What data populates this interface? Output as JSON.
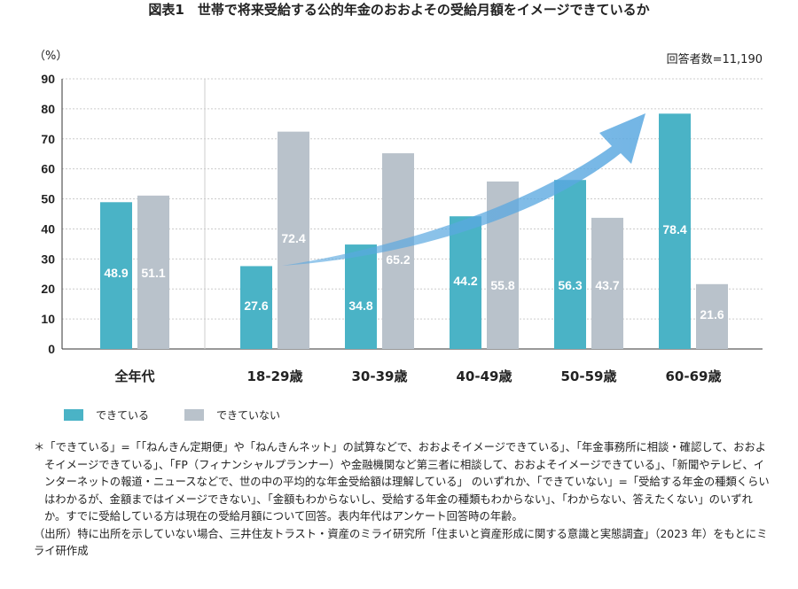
{
  "title": "図表1　世帯で将来受給する公的年金のおおよその受給月額をイメージできているか",
  "unit_label": "（%）",
  "respondents": "回答者数=11,190",
  "colors": {
    "can": "#4ab3c6",
    "cannot": "#b9c2cb",
    "arrow": "#5aa8e0"
  },
  "chart_data": {
    "type": "bar",
    "categories": [
      "全年代",
      "18-29歳",
      "30-39歳",
      "40-49歳",
      "50-59歳",
      "60-69歳"
    ],
    "series": [
      {
        "name": "できている",
        "values": [
          48.9,
          27.6,
          34.8,
          44.2,
          56.3,
          78.4
        ]
      },
      {
        "name": "できていない",
        "values": [
          51.1,
          72.4,
          65.2,
          55.8,
          43.7,
          21.6
        ]
      }
    ],
    "ylim": [
      0,
      90
    ],
    "yticks": [
      "0",
      "10",
      "20",
      "30",
      "40",
      "50",
      "60",
      "70",
      "80",
      "90"
    ],
    "grid": true,
    "legend": "bottom-left",
    "annotation": "upward-trend-arrow"
  },
  "notes": {
    "asterisk": "＊「できている」=「「ねんきん定期便」や「ねんきんネット」の試算などで、おおよそイメージできている」、「年金事務所に相談・確認して、おおよそイメージできている」、「FP（フィナンシャルプランナー）や金融機関など第三者に相談して、おおよそイメージできている」、「新聞やテレビ、インターネットの報道・ニュースなどで、世の中の平均的な年金受給額は理解している」 のいずれか、「できていない」=「受給する年金の種類くらいはわかるが、金額まではイメージできない」、「金額もわからないし、受給する年金の種類もわからない」、「わからない、答えたくない」のいずれか。すでに受給している方は現在の受給月額について回答。表内年代はアンケート回答時の年齢。",
    "source": "（出所）特に出所を示していない場合、三井住友トラスト・資産のミライ研究所「住まいと資産形成に関する意識と実態調査」（2023 年）をもとにミライ研作成"
  }
}
